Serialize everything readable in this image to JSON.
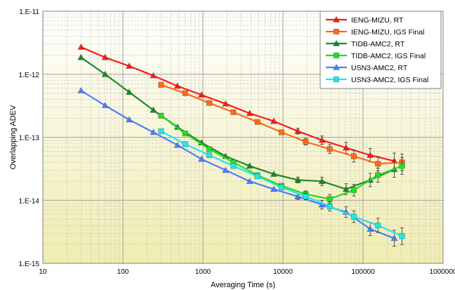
{
  "chart_data": {
    "type": "line",
    "xlabel": "Averaging Time (s)",
    "ylabel": "Overlapping ADEV",
    "xscale": "log",
    "yscale": "log",
    "xlim": [
      10,
      1000000
    ],
    "ylim": [
      1e-15,
      1e-11
    ],
    "x_tick_labels": [
      "10",
      "100",
      "1000",
      "10000",
      "100000",
      "1000000"
    ],
    "y_tick_labels": [
      "1.E-11",
      "1.E-12",
      "1.E-13",
      "1.E-14",
      "1.E-15"
    ],
    "grid": true,
    "legend_position": "top-right",
    "series": [
      {
        "name": "IENG-MIZU, RT",
        "color": "#ff1a1a",
        "marker": "triangle",
        "x": [
          30,
          60,
          120,
          240,
          480,
          960,
          1920,
          3840,
          7680,
          15360,
          30720,
          61440,
          122880,
          245760
        ],
        "y": [
          2.7e-12,
          1.85e-12,
          1.35e-12,
          9.5e-13,
          6.5e-13,
          4.7e-13,
          3.4e-13,
          2.4e-13,
          1.8e-13,
          1.25e-13,
          9e-14,
          6.8e-14,
          5.2e-14,
          4.2e-14
        ]
      },
      {
        "name": "IENG-MIZU, IGS Final",
        "color": "#ff6a1a",
        "marker": "square",
        "x": [
          300,
          600,
          1200,
          2400,
          4800,
          9600,
          19200,
          38400,
          76800,
          153600,
          307200
        ],
        "y": [
          6.8e-13,
          5e-13,
          3.5e-13,
          2.5e-13,
          1.75e-13,
          1.2e-13,
          8.5e-14,
          6.5e-14,
          5e-14,
          3.8e-14,
          4e-14
        ]
      },
      {
        "name": "TIDB-AMC2, RT",
        "color": "#1a8a2a",
        "marker": "triangle",
        "x": [
          30,
          60,
          120,
          240,
          480,
          960,
          1920,
          3840,
          7680,
          15360,
          30720,
          61440,
          122880,
          245760
        ],
        "y": [
          1.85e-12,
          1e-12,
          5.2e-13,
          2.7e-13,
          1.45e-13,
          8.2e-14,
          5e-14,
          3.5e-14,
          2.6e-14,
          2.1e-14,
          2e-14,
          1.5e-14,
          2.1e-14,
          3.1e-14
        ]
      },
      {
        "name": "TIDB-AMC2, IGS Final",
        "color": "#22dd22",
        "marker": "square",
        "x": [
          300,
          600,
          1200,
          2400,
          4800,
          9600,
          19200,
          38400,
          76800,
          153600,
          307200
        ],
        "y": [
          2.2e-13,
          1.15e-13,
          6.5e-14,
          4e-14,
          2.5e-14,
          1.7e-14,
          1.25e-14,
          1.05e-14,
          1.45e-14,
          2.5e-14,
          3.5e-14
        ]
      },
      {
        "name": "USN3-AMC2, RT",
        "color": "#4d7fff",
        "marker": "triangle",
        "x": [
          30,
          60,
          120,
          240,
          480,
          960,
          1920,
          3840,
          7680,
          15360,
          30720,
          61440,
          122880,
          245760
        ],
        "y": [
          5.5e-13,
          3.2e-13,
          1.9e-13,
          1.2e-13,
          7.5e-14,
          4.5e-14,
          3e-14,
          2e-14,
          1.5e-14,
          1.15e-14,
          8.5e-15,
          6.5e-15,
          3.5e-15,
          2.5e-15
        ]
      },
      {
        "name": "USN3-AMC2, IGS Final",
        "color": "#22e5e5",
        "marker": "square",
        "x": [
          300,
          600,
          1200,
          2400,
          4800,
          9600,
          19200,
          38400,
          76800,
          153600,
          307200
        ],
        "y": [
          1.25e-13,
          7.8e-14,
          5.2e-14,
          3.5e-14,
          2.4e-14,
          1.6e-14,
          1.15e-14,
          8e-15,
          5.5e-15,
          4e-15,
          2.7e-15
        ]
      }
    ]
  },
  "colors": {
    "plot_bg_top": "#ffffff",
    "plot_bg_bottom": "#f0ecb0",
    "grid_major": "#a0a0a0",
    "grid_minor": "#c8c8c8",
    "error_bar": "#333333"
  }
}
